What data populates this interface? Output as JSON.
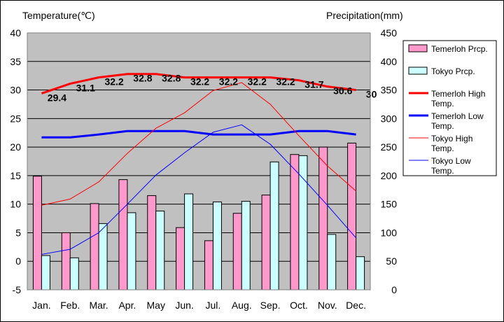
{
  "chart_data": {
    "type": "bar",
    "categories": [
      "Jan.",
      "Feb.",
      "Mar.",
      "Apr.",
      "May",
      "Jun.",
      "Jul.",
      "Aug.",
      "Sep.",
      "Oct.",
      "Nov.",
      "Dec."
    ],
    "ylabel_left": "Temperature(℃)",
    "ylabel_right": "Precipitation(mm)",
    "ylim_left": [
      -5,
      40
    ],
    "ylim_right": [
      0,
      450
    ],
    "yticks_left": [
      "-5",
      "0",
      "5",
      "10",
      "15",
      "20",
      "25",
      "30",
      "35",
      "40"
    ],
    "yticks_right": [
      "0",
      "50",
      "100",
      "150",
      "200",
      "250",
      "300",
      "350",
      "400",
      "450"
    ],
    "grid": true,
    "legend_position": "right",
    "bar_series": [
      {
        "name": "Temerloh Prcp.",
        "color": "#ff99cc",
        "axis": "right",
        "values": [
          199,
          100,
          151,
          193,
          165,
          109,
          86,
          134,
          166,
          237,
          250,
          257
        ]
      },
      {
        "name": "Tokyo Prcp.",
        "color": "#ccffff",
        "axis": "right",
        "values": [
          60,
          56,
          116,
          135,
          138,
          168,
          154,
          155,
          224,
          235,
          97,
          58
        ]
      }
    ],
    "line_series": [
      {
        "name": "Temerloh High Temp.",
        "color": "#ff0000",
        "width": 3,
        "axis": "left",
        "values": [
          29.4,
          31.1,
          32.2,
          32.8,
          32.8,
          32.2,
          32.2,
          32.2,
          32.2,
          31.7,
          30.6,
          30
        ],
        "labels": [
          "29.4",
          "31.1",
          "32.2",
          "32.8",
          "32.8",
          "32.2",
          "32.2",
          "32.2",
          "32.2",
          "31.7",
          "30.6",
          "30"
        ]
      },
      {
        "name": "Temerloh Low Temp.",
        "color": "#0000ff",
        "width": 3,
        "axis": "left",
        "values": [
          21.7,
          21.7,
          22.2,
          22.8,
          22.8,
          22.8,
          22.2,
          22.2,
          22.2,
          22.8,
          22.8,
          22.2
        ]
      },
      {
        "name": "Tokyo High Temp.",
        "color": "#ff0000",
        "width": 1,
        "axis": "left",
        "values": [
          9.8,
          10.9,
          13.9,
          18.9,
          23.3,
          26.0,
          29.9,
          31.3,
          27.5,
          22.0,
          16.7,
          12.3
        ]
      },
      {
        "name": "Tokyo Low Temp.",
        "color": "#0000ff",
        "width": 1,
        "axis": "left",
        "values": [
          1.2,
          2.1,
          5.0,
          10.0,
          15.1,
          19.0,
          22.6,
          23.9,
          20.5,
          15.3,
          9.8,
          4.1
        ]
      }
    ],
    "legend": [
      {
        "label": "Temerloh Prcp.",
        "kind": "box",
        "color": "#ff99cc"
      },
      {
        "label": "Tokyo Prcp.",
        "kind": "box",
        "color": "#ccffff"
      },
      {
        "label": "Temerloh High Temp.",
        "kind": "line",
        "color": "#ff0000",
        "width": 3
      },
      {
        "label": "Temerloh Low Temp.",
        "kind": "line",
        "color": "#0000ff",
        "width": 3
      },
      {
        "label": "Tokyo High Temp.",
        "kind": "line",
        "color": "#ff0000",
        "width": 1
      },
      {
        "label": "Tokyo Low Temp.",
        "kind": "line",
        "color": "#0000ff",
        "width": 1
      }
    ]
  }
}
